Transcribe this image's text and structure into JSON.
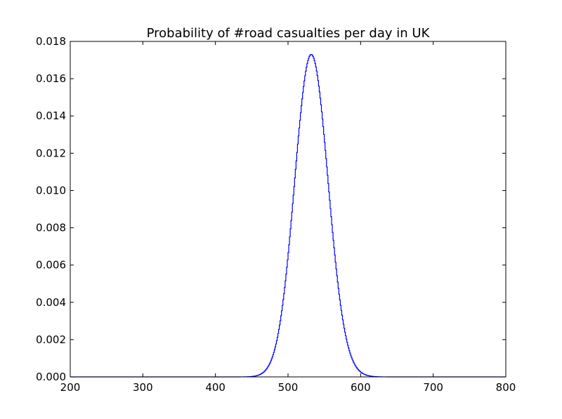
{
  "chart_data": {
    "type": "line",
    "title": "Probability of #road casualties per day in UK",
    "xlabel": "",
    "ylabel": "",
    "xlim": [
      200,
      800
    ],
    "ylim": [
      0,
      0.018
    ],
    "xticks": [
      "200",
      "300",
      "400",
      "500",
      "600",
      "700",
      "800"
    ],
    "yticks": [
      "0.000",
      "0.002",
      "0.004",
      "0.006",
      "0.008",
      "0.010",
      "0.012",
      "0.014",
      "0.016",
      "0.018"
    ],
    "grid": false,
    "series": [
      {
        "name": "",
        "color": "#0000ff",
        "distribution": "poisson",
        "mean": 532,
        "x_range": [
          200,
          800
        ],
        "peak_value": 0.0173
      }
    ]
  }
}
